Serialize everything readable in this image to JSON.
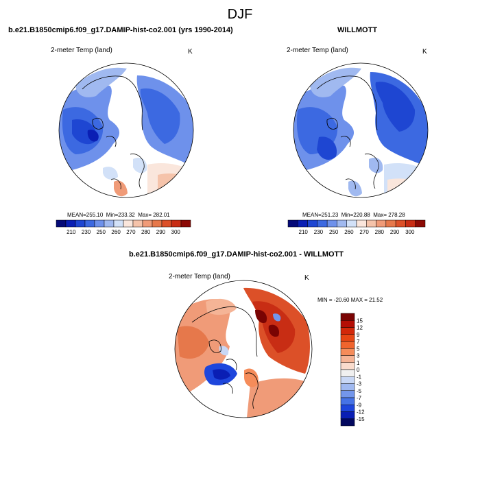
{
  "page": {
    "title": "DJF"
  },
  "panels": [
    {
      "case_title": "b.e21.B1850cmip6.f09_g17.DAMIP-hist-co2.001 (yrs 1990-2014)",
      "field_label": "2-meter Temp (land)",
      "unit": "K",
      "stats": {
        "mean_label": "MEAN=",
        "mean": "255.10",
        "min_label": "Min=",
        "min": "233.32",
        "max_label": "Max=",
        "max": "282.01"
      }
    },
    {
      "case_title": "WILLMOTT",
      "field_label": "2-meter Temp (land)",
      "unit": "K",
      "stats": {
        "mean_label": "MEAN=",
        "mean": "251.23",
        "min_label": "Min=",
        "min": "220.88",
        "max_label": "Max=",
        "max": "278.28"
      }
    }
  ],
  "diff_panel": {
    "case_title": "b.e21.B1850cmip6.f09_g17.DAMIP-hist-co2.001 - WILLMOTT",
    "field_label": "2-meter Temp (land)",
    "unit": "K",
    "minmax": "MIN = -20.60 MAX =  21.52"
  },
  "chart_data": [
    {
      "type": "heatmap",
      "title": "b.e21.B1850cmip6.f09_g17.DAMIP-hist-co2.001 (yrs 1990-2014)",
      "variable": "2-meter Temp (land)",
      "units": "K",
      "projection": "polar stereographic (north)",
      "stats": {
        "mean": 255.1,
        "min": 233.32,
        "max": 282.01
      },
      "colorbar_ticks": [
        "210",
        "230",
        "250",
        "260",
        "270",
        "280",
        "290",
        "300"
      ],
      "colorbar_colors": [
        "#050a78",
        "#0a1fb4",
        "#1e46d2",
        "#3c69e1",
        "#6e91eb",
        "#a0b9f0",
        "#d2e1f8",
        "#fae6dc",
        "#f5c3aa",
        "#f09b78",
        "#e6784b",
        "#dc5028",
        "#c82d14",
        "#8c0a05"
      ]
    },
    {
      "type": "heatmap",
      "title": "WILLMOTT",
      "variable": "2-meter Temp (land)",
      "units": "K",
      "projection": "polar stereographic (north)",
      "stats": {
        "mean": 251.23,
        "min": 220.88,
        "max": 278.28
      },
      "colorbar_ticks": [
        "210",
        "230",
        "250",
        "260",
        "270",
        "280",
        "290",
        "300"
      ],
      "colorbar_colors": [
        "#050a78",
        "#0a1fb4",
        "#1e46d2",
        "#3c69e1",
        "#6e91eb",
        "#a0b9f0",
        "#d2e1f8",
        "#fae6dc",
        "#f5c3aa",
        "#f09b78",
        "#e6784b",
        "#dc5028",
        "#c82d14",
        "#8c0a05"
      ]
    },
    {
      "type": "heatmap",
      "title": "b.e21.B1850cmip6.f09_g17.DAMIP-hist-co2.001 - WILLMOTT",
      "variable": "2-meter Temp (land)",
      "units": "K",
      "projection": "polar stereographic (north)",
      "stats": {
        "min": -20.6,
        "max": 21.52
      },
      "colorbar_orientation": "vertical",
      "colorbar_ticks": [
        "15",
        "12",
        "9",
        "7",
        "5",
        "3",
        "1",
        "0",
        "-1",
        "-3",
        "-5",
        "-7",
        "-9",
        "-12",
        "-15"
      ],
      "colorbar_colors": [
        "#7a0403",
        "#b40e05",
        "#d2280a",
        "#e64614",
        "#f0642d",
        "#f58c5a",
        "#f5b496",
        "#fadccd",
        "#f0f0f0",
        "#c8d7f5",
        "#a0b9f0",
        "#7396eb",
        "#4673e6",
        "#1e46dc",
        "#0a1eb4",
        "#03085f"
      ]
    }
  ]
}
